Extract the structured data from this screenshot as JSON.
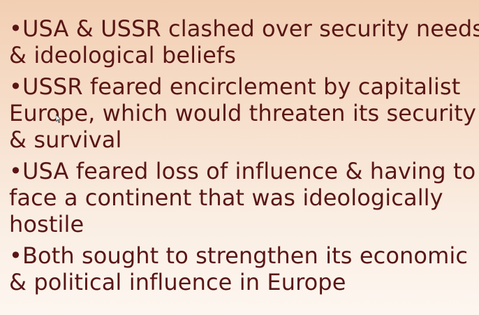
{
  "slide": {
    "bullets": [
      {
        "lines": [
          "•USA & USSR clashed over security needs",
          "& ideological beliefs"
        ]
      },
      {
        "lines": [
          "•USSR feared encirclement by capitalist",
          "Europe, which would threaten its security",
          "& survival"
        ]
      },
      {
        "lines": [
          "•USA feared loss of influence & having to",
          "face a continent that was ideologically",
          "hostile"
        ]
      },
      {
        "lines": [
          "•Both sought to strengthen its economic",
          "& political influence in Europe"
        ]
      }
    ]
  },
  "colors": {
    "text": "#5a1616",
    "background_top": "#f2cfb3",
    "background_bottom": "#fdf6f0"
  },
  "icons": {
    "cursor": "mouse-pointer-icon"
  }
}
